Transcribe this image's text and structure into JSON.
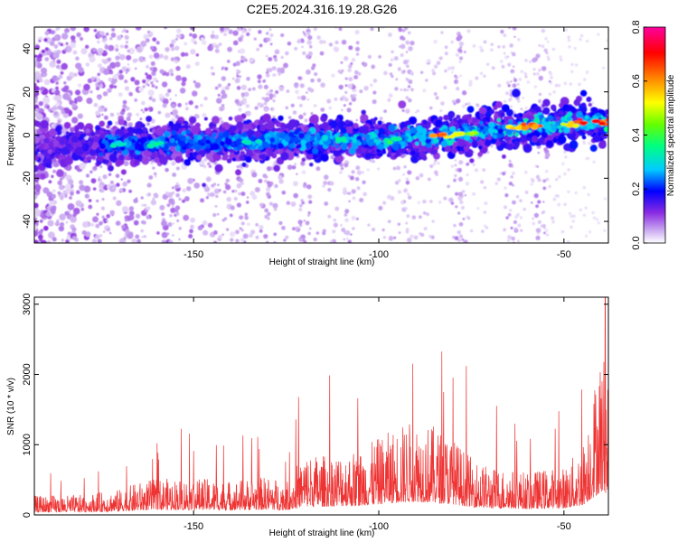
{
  "figure": {
    "title": "C2E5.2024.316.19.28.G26"
  },
  "chart_data": [
    {
      "type": "heatmap",
      "xlabel": "Height of straight line (km)",
      "ylabel": "Frequency (Hz)",
      "xlim": [
        -193,
        -38
      ],
      "ylim": [
        -50,
        50
      ],
      "xticks": [
        -150,
        -100,
        -50
      ],
      "yticks": [
        -40,
        -20,
        0,
        20,
        40
      ],
      "ridge": {
        "x": [
          -193,
          -180,
          -170,
          -160,
          -150,
          -140,
          -130,
          -120,
          -110,
          -100,
          -90,
          -80,
          -70,
          -60,
          -50,
          -38
        ],
        "y": [
          -5,
          -5,
          -4,
          -4,
          -3,
          -3,
          -3,
          -2,
          -2,
          -3,
          -1,
          0,
          2,
          4,
          5,
          6
        ]
      },
      "colorbar": {
        "label": "Normalized spectral amplitude",
        "range": [
          0,
          0.8
        ],
        "ticks": [
          0.0,
          0.2,
          0.4,
          0.6,
          0.8
        ],
        "tick_labels": [
          "0.0",
          "0.2",
          "0.4",
          "0.6",
          "0.8"
        ],
        "colors": [
          "#ffffff",
          "#c9a8f0",
          "#8a2be2",
          "#0000ff",
          "#00ccff",
          "#00ff80",
          "#66ff00",
          "#ffff00",
          "#ff8800",
          "#ff0000",
          "#ff00a0"
        ]
      },
      "grid": false
    },
    {
      "type": "line",
      "xlabel": "Height of straight line (km)",
      "ylabel": "SNR (10 * v/v)",
      "xlim": [
        -193,
        -38
      ],
      "ylim": [
        0,
        3100
      ],
      "xticks": [
        -150,
        -100,
        -50
      ],
      "yticks": [
        0,
        1000,
        2000,
        3000
      ],
      "series": [
        {
          "color": "#ee3333",
          "envelope_x": [
            -193,
            -180,
            -170,
            -165,
            -160,
            -150,
            -140,
            -130,
            -125,
            -120,
            -115,
            -110,
            -105,
            -100,
            -95,
            -90,
            -85,
            -80,
            -75,
            -70,
            -65,
            -60,
            -55,
            -50,
            -45,
            -40,
            -38
          ],
          "envelope_y": [
            250,
            260,
            330,
            420,
            470,
            480,
            450,
            500,
            440,
            800,
            780,
            830,
            850,
            1000,
            1150,
            1250,
            1150,
            1000,
            750,
            620,
            600,
            560,
            600,
            620,
            900,
            2200,
            2000
          ]
        }
      ],
      "grid": false
    }
  ]
}
